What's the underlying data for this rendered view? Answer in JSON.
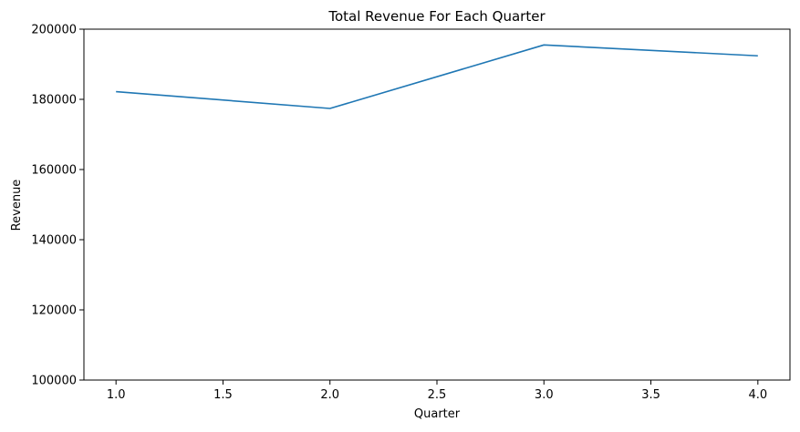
{
  "chart_data": {
    "type": "line",
    "title": "Total Revenue For Each Quarter",
    "xlabel": "Quarter",
    "ylabel": "Revenue",
    "xlim": [
      0.85,
      4.15
    ],
    "ylim": [
      100000,
      200000
    ],
    "xticks": [
      1.0,
      1.5,
      2.0,
      2.5,
      3.0,
      3.5,
      4.0
    ],
    "xtick_labels": [
      "1.0",
      "1.5",
      "2.0",
      "2.5",
      "3.0",
      "3.5",
      "4.0"
    ],
    "yticks": [
      100000,
      120000,
      140000,
      160000,
      180000,
      200000
    ],
    "ytick_labels": [
      "100000",
      "120000",
      "140000",
      "160000",
      "180000",
      "200000"
    ],
    "grid": false,
    "series": [
      {
        "color": "#1f77b4",
        "x": [
          1,
          2,
          3,
          4
        ],
        "y": [
          182200,
          177400,
          195500,
          192400
        ]
      }
    ]
  }
}
